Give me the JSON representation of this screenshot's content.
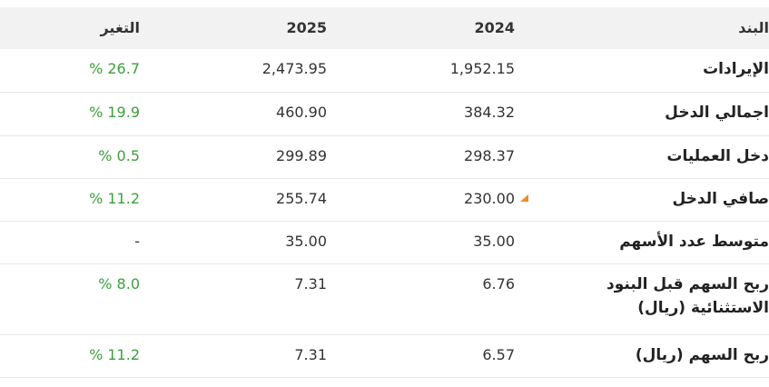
{
  "header": {
    "item_label": "البند",
    "y2024_label": "2024",
    "y2025_label": "2025",
    "change_label": "التغير"
  },
  "rows": [
    {
      "item": "الإيرادات",
      "y2024": "1,952.15",
      "y2025": "2,473.95",
      "change": "% 26.7"
    },
    {
      "item": "اجمالي الدخل",
      "y2024": "384.32",
      "y2025": "460.90",
      "change": "% 19.9"
    },
    {
      "item": "دخل العمليات",
      "y2024": "298.37",
      "y2025": "299.89",
      "change": "% 0.5"
    },
    {
      "item": "صافي الدخل",
      "y2024": "230.00",
      "y2025": "255.74",
      "change": "% 11.2",
      "flag_icon": "orange-triangle-icon"
    },
    {
      "item": "متوسط عدد الأسهم",
      "y2024": "35.00",
      "y2025": "35.00",
      "change": "-"
    },
    {
      "item": "ربح السهم قبل البنود الاستثنائية (ريال)",
      "y2024": "6.76",
      "y2025": "7.31",
      "change": "% 8.0"
    },
    {
      "item": "ربح السهم (ريال)",
      "y2024": "6.57",
      "y2025": "7.31",
      "change": "% 11.2"
    }
  ],
  "colors": {
    "positive_change": "#3ca03c",
    "header_bg": "#f2f2f2",
    "flag": "#f08b28"
  }
}
